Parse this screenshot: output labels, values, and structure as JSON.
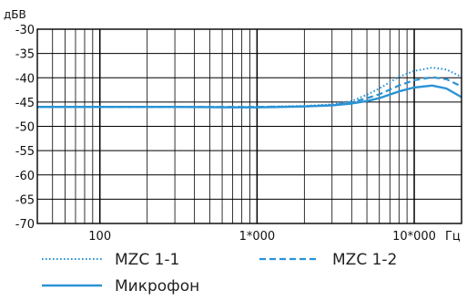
{
  "chart_data": {
    "type": "line",
    "xscale": "log",
    "ylabel": "дБВ",
    "xunit": "Гц",
    "xlim": [
      40,
      20000
    ],
    "ylim": [
      -70,
      -30
    ],
    "yticks": [
      -30,
      -35,
      -40,
      -45,
      -50,
      -55,
      -60,
      -65,
      -70
    ],
    "ytick_labels": [
      "-30",
      "-35",
      "-40",
      "-45",
      "-50",
      "-55",
      "-60",
      "-65",
      "-70"
    ],
    "xtick_values": [
      100,
      1000,
      10000
    ],
    "xtick_labels": [
      "100",
      "1*000",
      "10*000"
    ],
    "grid": true,
    "legend_position": "bottom",
    "series": [
      {
        "name": "MZC 1-1",
        "style": "dotted",
        "color": "#2a93d5",
        "x": [
          40,
          100,
          500,
          1000,
          2000,
          3000,
          4000,
          5000,
          6000,
          8000,
          10000,
          13000,
          16000,
          20000
        ],
        "y": [
          -46,
          -46,
          -46,
          -46,
          -45.8,
          -45.5,
          -44.8,
          -43.5,
          -42.2,
          -39.8,
          -38.6,
          -37.9,
          -38.3,
          -39.8
        ]
      },
      {
        "name": "MZC 1-2",
        "style": "dashed",
        "color": "#2a93d5",
        "x": [
          40,
          100,
          500,
          1000,
          2000,
          3000,
          4000,
          5000,
          6000,
          8000,
          10000,
          13000,
          16000,
          20000
        ],
        "y": [
          -46,
          -46,
          -46,
          -46,
          -45.9,
          -45.6,
          -45.1,
          -44.2,
          -43.4,
          -41.6,
          -40.5,
          -39.9,
          -40.3,
          -41.8
        ]
      },
      {
        "name": "Микрофон",
        "style": "solid",
        "color": "#2a93d5",
        "x": [
          40,
          100,
          300,
          700,
          1000,
          1500,
          2000,
          3000,
          4000,
          5000,
          6000,
          8000,
          10000,
          13000,
          16000,
          20000
        ],
        "y": [
          -46,
          -46,
          -46,
          -46.1,
          -46.1,
          -46,
          -45.9,
          -45.7,
          -45.3,
          -44.8,
          -44.2,
          -42.8,
          -42,
          -41.6,
          -42.2,
          -44
        ]
      }
    ]
  }
}
